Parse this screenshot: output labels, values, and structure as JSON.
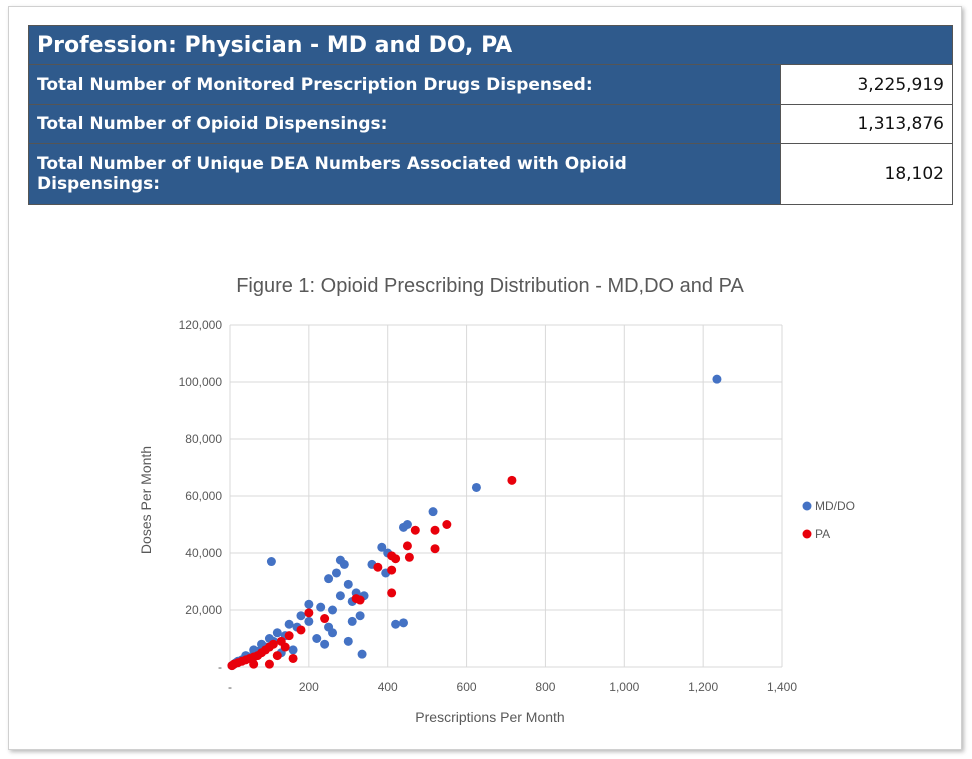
{
  "table": {
    "header": "Profession: Physician - MD and DO, PA",
    "rows": [
      [
        "Total Number of Monitored Prescription Drugs Dispensed:",
        "3,225,919"
      ],
      [
        "Total Number of Opioid Dispensings:",
        "1,313,876"
      ],
      [
        "Total Number of Unique DEA Numbers Associated with Opioid Dispensings:",
        "18,102"
      ]
    ]
  },
  "chart_data": {
    "type": "scatter",
    "title": "Figure 1: Opioid Prescribing Distribution - MD,DO and PA",
    "x_label": "Prescriptions Per Month",
    "y_label": "Doses Per Month",
    "xlim": [
      0,
      1400
    ],
    "ylim": [
      0,
      120000
    ],
    "xticks": [
      {
        "value": 0,
        "label": "-"
      },
      200,
      400,
      600,
      800,
      {
        "value": 1000,
        "label": "1,000"
      },
      {
        "value": 1200,
        "label": "1,200"
      },
      {
        "value": 1400,
        "label": "1,400"
      }
    ],
    "yticks": [
      {
        "value": 0,
        "label": "-"
      },
      {
        "value": 20000,
        "label": "20,000"
      },
      {
        "value": 40000,
        "label": "40,000"
      },
      {
        "value": 60000,
        "label": "60,000"
      },
      {
        "value": 80000,
        "label": "80,000"
      },
      {
        "value": 100000,
        "label": "100,000"
      },
      {
        "value": 120000,
        "label": "120,000"
      }
    ],
    "grid": true,
    "legend": "right",
    "series": [
      {
        "name": "MD/DO",
        "color": "#4472c4",
        "x": [
          1235,
          625,
          105,
          515,
          450,
          440,
          385,
          400,
          395,
          420,
          440,
          335,
          280,
          290,
          270,
          250,
          300,
          320,
          340,
          330,
          310,
          260,
          230,
          200,
          180,
          150,
          120,
          100,
          80,
          60,
          40,
          20,
          10,
          220,
          240,
          160,
          130,
          200,
          170,
          140,
          110,
          90,
          70,
          50,
          30,
          15,
          5,
          250,
          280,
          310,
          360,
          300,
          260
        ],
        "y": [
          101000,
          63000,
          37000,
          54500,
          50000,
          49000,
          42000,
          40000,
          33000,
          15000,
          15500,
          4500,
          37500,
          36000,
          33000,
          31000,
          29000,
          26000,
          25000,
          18000,
          16000,
          20000,
          21000,
          22000,
          18000,
          15000,
          12000,
          10000,
          8000,
          6000,
          4000,
          2000,
          1000,
          10000,
          8000,
          6000,
          5000,
          16000,
          14000,
          11000,
          9000,
          7000,
          5500,
          3500,
          2500,
          1500,
          500,
          14000,
          25000,
          23000,
          36000,
          9000,
          12000
        ]
      },
      {
        "name": "PA",
        "color": "#e8000b",
        "x": [
          715,
          550,
          520,
          470,
          520,
          450,
          420,
          410,
          410,
          375,
          410,
          455,
          320,
          330,
          200,
          240,
          180,
          150,
          130,
          110,
          100,
          90,
          80,
          70,
          60,
          50,
          40,
          30,
          20,
          10,
          5,
          120,
          100,
          160,
          140,
          60
        ],
        "y": [
          65500,
          50000,
          48000,
          48000,
          41500,
          42500,
          38000,
          39000,
          26000,
          35000,
          34000,
          38500,
          24000,
          23500,
          19000,
          17000,
          13000,
          11000,
          9000,
          8000,
          7000,
          6000,
          5000,
          4000,
          3500,
          3000,
          2500,
          2000,
          1500,
          1000,
          500,
          4000,
          1000,
          3000,
          7000,
          1000
        ]
      }
    ]
  }
}
